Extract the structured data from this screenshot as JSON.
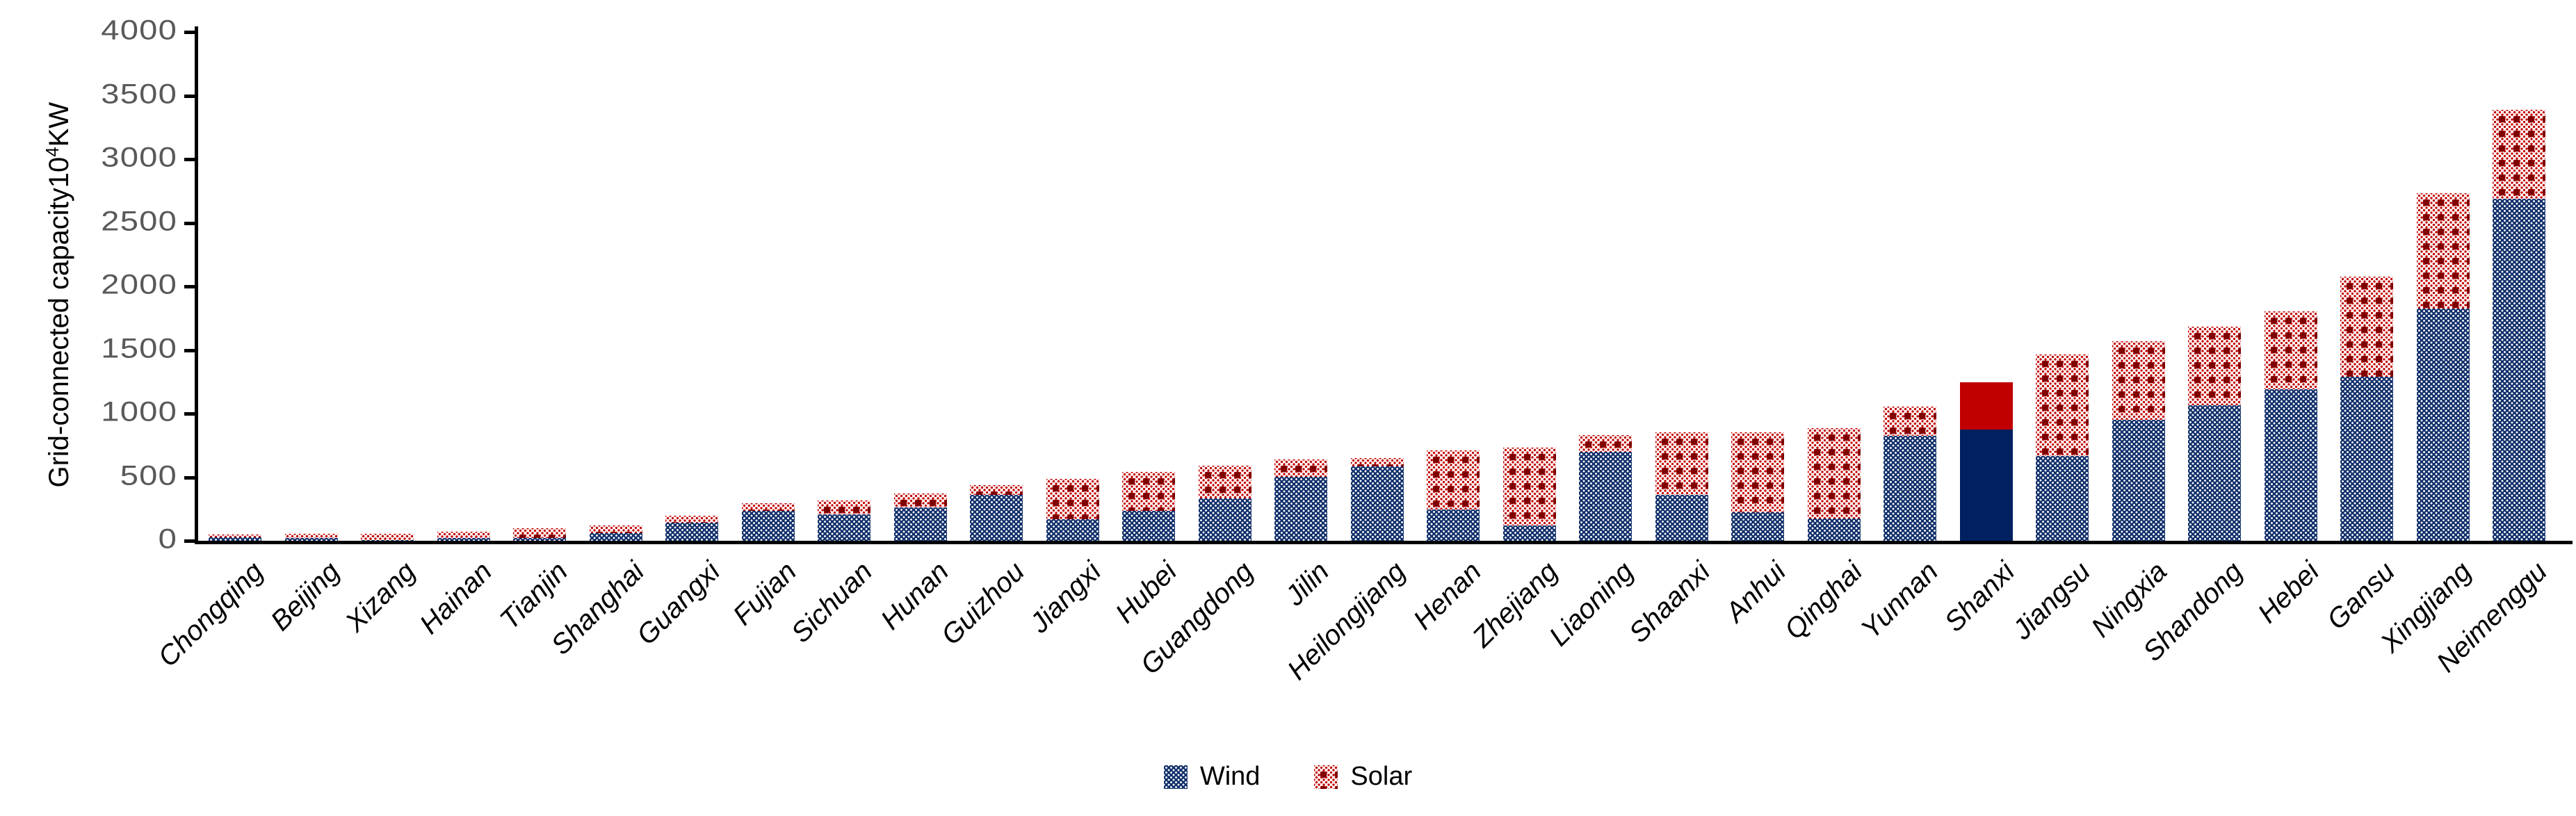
{
  "chart_data": {
    "type": "bar",
    "stacked": true,
    "title": "",
    "ylabel_prefix": "Grid-connected capacity10",
    "ylabel_sup": "4",
    "ylabel_suffix": "KW",
    "ylim": [
      0,
      4000
    ],
    "yticks": [
      0,
      500,
      1000,
      1500,
      2000,
      2500,
      3000,
      3500,
      4000
    ],
    "grid": false,
    "legend_position": "bottom-center",
    "highlight_category": "Shanxi",
    "categories": [
      "Chongqing",
      "Beijing",
      "Xizang",
      "Hainan",
      "Tianjin",
      "Shanghai",
      "Guangxi",
      "Fujian",
      "Sichuan",
      "Hunan",
      "Guizhou",
      "Jiangxi",
      "Hubei",
      "Guangdong",
      "Jilin",
      "Heilongijang",
      "Henan",
      "Zhejiang",
      "Liaoning",
      "Shaanxi",
      "Anhui",
      "Qinghai",
      "Yunnan",
      "Shanxi",
      "Jiangsu",
      "Ningxia",
      "Shandong",
      "Hebei",
      "Gansu",
      "Xingjiang",
      "Neimenggu"
    ],
    "series": [
      {
        "name": "Wind",
        "values": [
          25,
          22,
          4,
          20,
          25,
          60,
          142,
          237,
          210,
          263,
          362,
          171,
          237,
          336,
          505,
          585,
          245,
          122,
          700,
          360,
          223,
          177,
          825,
          877,
          667,
          953,
          1068,
          1191,
          1288,
          1824,
          2688
        ]
      },
      {
        "name": "Solar",
        "values": [
          27,
          31,
          51,
          53,
          75,
          62,
          55,
          57,
          106,
          106,
          78,
          318,
          302,
          254,
          135,
          63,
          465,
          612,
          131,
          490,
          632,
          707,
          229,
          368,
          796,
          616,
          614,
          612,
          789,
          910,
          700
        ]
      }
    ],
    "colors": {
      "wind": "#002060",
      "solar": "#C00000",
      "highlight_wind": "#002060",
      "highlight_solar": "#C00000",
      "axis": "#000000",
      "tick_label": "#595959"
    }
  }
}
